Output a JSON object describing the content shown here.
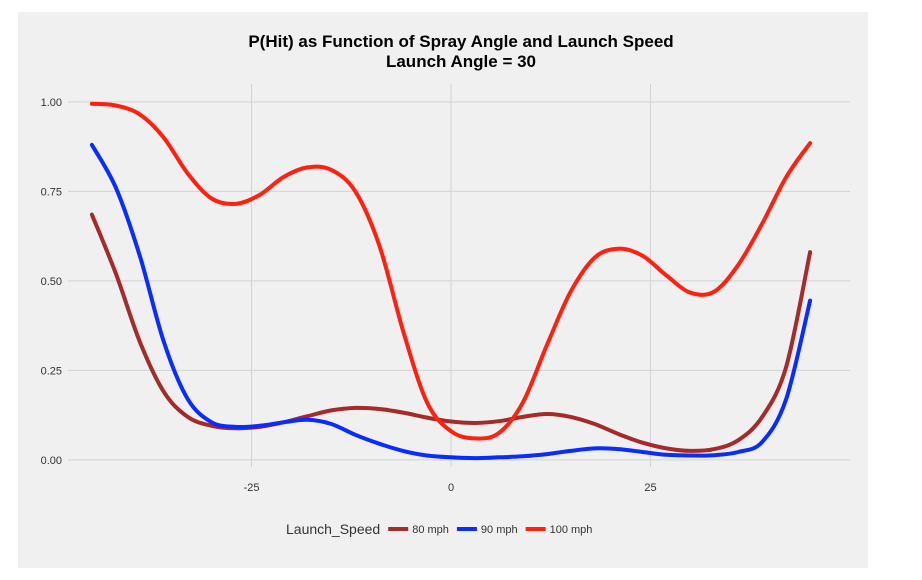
{
  "chart_data": {
    "type": "line",
    "title": "P(Hit) as Function of Spray Angle and Launch Speed",
    "subtitle": "Launch Angle =  30",
    "xlabel": "",
    "ylabel": "",
    "xlim": [
      -48,
      50
    ],
    "ylim": [
      -0.02,
      1.05
    ],
    "x_ticks": [
      -25,
      0,
      25
    ],
    "x_tick_labels": [
      "-25",
      "0",
      "25"
    ],
    "y_ticks": [
      0,
      0.25,
      0.5,
      0.75,
      1.0
    ],
    "y_tick_labels": [
      "0.00",
      "0.25",
      "0.50",
      "0.75",
      "1.00"
    ],
    "grid": true,
    "legend": {
      "title": "Launch_Speed",
      "position": "bottom"
    },
    "series": [
      {
        "name": "80 mph",
        "color": "#a52a2a",
        "points": [
          [
            -45,
            0.685
          ],
          [
            -42,
            0.52
          ],
          [
            -39,
            0.33
          ],
          [
            -36,
            0.19
          ],
          [
            -33,
            0.12
          ],
          [
            -30,
            0.095
          ],
          [
            -27,
            0.088
          ],
          [
            -24,
            0.092
          ],
          [
            -21,
            0.105
          ],
          [
            -18,
            0.122
          ],
          [
            -15,
            0.138
          ],
          [
            -12,
            0.145
          ],
          [
            -9,
            0.142
          ],
          [
            -6,
            0.132
          ],
          [
            -3,
            0.118
          ],
          [
            0,
            0.107
          ],
          [
            3,
            0.103
          ],
          [
            6,
            0.108
          ],
          [
            9,
            0.12
          ],
          [
            12,
            0.128
          ],
          [
            15,
            0.12
          ],
          [
            18,
            0.1
          ],
          [
            21,
            0.072
          ],
          [
            24,
            0.048
          ],
          [
            27,
            0.032
          ],
          [
            30,
            0.025
          ],
          [
            33,
            0.03
          ],
          [
            36,
            0.055
          ],
          [
            39,
            0.12
          ],
          [
            42,
            0.26
          ],
          [
            45,
            0.58
          ]
        ]
      },
      {
        "name": "90 mph",
        "color": "#0a2cff",
        "points": [
          [
            -45,
            0.88
          ],
          [
            -42,
            0.76
          ],
          [
            -39,
            0.57
          ],
          [
            -36,
            0.33
          ],
          [
            -33,
            0.17
          ],
          [
            -30,
            0.105
          ],
          [
            -27,
            0.092
          ],
          [
            -24,
            0.095
          ],
          [
            -21,
            0.105
          ],
          [
            -18,
            0.112
          ],
          [
            -15,
            0.1
          ],
          [
            -12,
            0.07
          ],
          [
            -9,
            0.045
          ],
          [
            -6,
            0.025
          ],
          [
            -3,
            0.012
          ],
          [
            0,
            0.007
          ],
          [
            3,
            0.005
          ],
          [
            6,
            0.007
          ],
          [
            9,
            0.01
          ],
          [
            12,
            0.016
          ],
          [
            15,
            0.025
          ],
          [
            18,
            0.032
          ],
          [
            21,
            0.03
          ],
          [
            24,
            0.022
          ],
          [
            27,
            0.014
          ],
          [
            30,
            0.012
          ],
          [
            33,
            0.013
          ],
          [
            36,
            0.022
          ],
          [
            39,
            0.05
          ],
          [
            42,
            0.17
          ],
          [
            45,
            0.445
          ]
        ]
      },
      {
        "name": "100 mph",
        "color": "#ff2010",
        "points": [
          [
            -45,
            0.995
          ],
          [
            -42,
            0.99
          ],
          [
            -39,
            0.965
          ],
          [
            -36,
            0.9
          ],
          [
            -33,
            0.8
          ],
          [
            -30,
            0.73
          ],
          [
            -27,
            0.715
          ],
          [
            -24,
            0.74
          ],
          [
            -21,
            0.79
          ],
          [
            -18,
            0.817
          ],
          [
            -15,
            0.81
          ],
          [
            -12,
            0.75
          ],
          [
            -9,
            0.6
          ],
          [
            -6,
            0.36
          ],
          [
            -3,
            0.16
          ],
          [
            0,
            0.08
          ],
          [
            3,
            0.06
          ],
          [
            6,
            0.075
          ],
          [
            9,
            0.16
          ],
          [
            12,
            0.32
          ],
          [
            15,
            0.47
          ],
          [
            18,
            0.565
          ],
          [
            21,
            0.59
          ],
          [
            24,
            0.57
          ],
          [
            27,
            0.515
          ],
          [
            30,
            0.467
          ],
          [
            33,
            0.47
          ],
          [
            36,
            0.545
          ],
          [
            39,
            0.66
          ],
          [
            42,
            0.79
          ],
          [
            45,
            0.885
          ]
        ]
      }
    ]
  }
}
